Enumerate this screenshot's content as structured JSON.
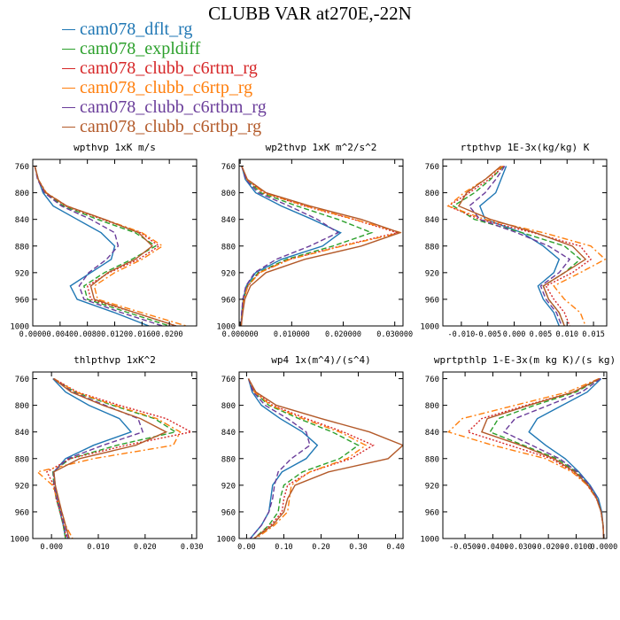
{
  "title": "CLUBB VAR at270E,-22N",
  "colors": {
    "cam078_dflt_rg": "#1f77b4",
    "cam078_expldiff": "#2ca02c",
    "cam078_clubb_c6rtm_rg": "#d62728",
    "cam078_clubb_c6rtp_rg": "#ff7f0e",
    "cam078_clubb_c6rtbm_rg": "#6a3d9a",
    "cam078_clubb_c6rtbp_rg": "#b35a2a"
  },
  "legend": [
    {
      "label": "cam078_dflt_rg",
      "color": "#1f77b4"
    },
    {
      "label": "cam078_expldiff",
      "color": "#2ca02c"
    },
    {
      "label": "cam078_clubb_c6rtm_rg",
      "color": "#d62728"
    },
    {
      "label": "cam078_clubb_c6rtp_rg",
      "color": "#ff7f0e"
    },
    {
      "label": "cam078_clubb_c6rtbm_rg",
      "color": "#6a3d9a"
    },
    {
      "label": "cam078_clubb_c6rtbp_rg",
      "color": "#b35a2a"
    }
  ],
  "chart_data": [
    {
      "type": "line",
      "title": "wpthvp  1xK m/s",
      "xlim": [
        0,
        0.024
      ],
      "ylim": [
        1000,
        750
      ],
      "y_axis_reversed": true,
      "xticks": [
        "0.0000",
        "0.0040",
        "0.0080",
        "0.0120",
        "0.0160",
        "0.0200"
      ],
      "xtick_values": [
        0,
        0.004,
        0.008,
        0.012,
        0.016,
        0.02
      ],
      "yticks": [
        "760",
        "800",
        "840",
        "880",
        "920",
        "960",
        "1000"
      ],
      "ytick_values": [
        760,
        800,
        840,
        880,
        920,
        960,
        1000
      ],
      "y": [
        760,
        780,
        800,
        820,
        840,
        860,
        880,
        900,
        920,
        940,
        960,
        980,
        1000
      ],
      "series": [
        {
          "name": "cam078_dflt_rg",
          "style": "solid",
          "x": [
            0.0003,
            0.0008,
            0.0015,
            0.003,
            0.0065,
            0.01,
            0.012,
            0.0115,
            0.0085,
            0.0055,
            0.0065,
            0.012,
            0.017
          ]
        },
        {
          "name": "cam078_expldiff",
          "style": "dashed",
          "x": [
            0.0003,
            0.0008,
            0.0018,
            0.0045,
            0.0095,
            0.015,
            0.018,
            0.0145,
            0.0105,
            0.0075,
            0.008,
            0.014,
            0.02
          ]
        },
        {
          "name": "cam078_clubb_c6rtm_rg",
          "style": "dotted",
          "x": [
            0.0003,
            0.0008,
            0.0019,
            0.0048,
            0.0102,
            0.0158,
            0.0185,
            0.0155,
            0.0112,
            0.008,
            0.0085,
            0.015,
            0.021
          ]
        },
        {
          "name": "cam078_clubb_c6rtp_rg",
          "style": "dashdot",
          "x": [
            0.0003,
            0.0008,
            0.002,
            0.005,
            0.0105,
            0.016,
            0.019,
            0.016,
            0.012,
            0.009,
            0.0095,
            0.016,
            0.0225
          ]
        },
        {
          "name": "cam078_clubb_c6rtbm_rg",
          "style": "dashed",
          "x": [
            0.0003,
            0.0007,
            0.0017,
            0.0042,
            0.0085,
            0.012,
            0.0125,
            0.0108,
            0.0082,
            0.0068,
            0.0075,
            0.013,
            0.019
          ]
        },
        {
          "name": "cam078_clubb_c6rtbp_rg",
          "style": "solid",
          "x": [
            0.0003,
            0.0008,
            0.0019,
            0.005,
            0.0105,
            0.0155,
            0.0175,
            0.015,
            0.011,
            0.0085,
            0.009,
            0.015,
            0.021
          ]
        }
      ]
    },
    {
      "type": "line",
      "title": "wp2thvp  1xK m^2/s^2",
      "xlim": [
        -0.0002,
        0.0316
      ],
      "ylim": [
        1000,
        750
      ],
      "y_axis_reversed": true,
      "xticks": [
        "0.000000",
        "0.010000",
        "0.020000",
        "0.030000"
      ],
      "xtick_values": [
        0,
        0.01,
        0.02,
        0.03
      ],
      "yticks": [
        "760",
        "800",
        "840",
        "880",
        "920",
        "960",
        "1000"
      ],
      "ytick_values": [
        760,
        800,
        840,
        880,
        920,
        960,
        1000
      ],
      "y": [
        760,
        780,
        800,
        820,
        840,
        860,
        880,
        900,
        920,
        940,
        960,
        980,
        1000
      ],
      "series": [
        {
          "name": "cam078_dflt_rg",
          "style": "solid",
          "x": [
            0.0003,
            0.001,
            0.003,
            0.008,
            0.014,
            0.0195,
            0.016,
            0.008,
            0.003,
            0.0012,
            0.0006,
            0.0003,
            0.0002
          ]
        },
        {
          "name": "cam078_expldiff",
          "style": "dashed",
          "x": [
            0.0003,
            0.0012,
            0.004,
            0.011,
            0.019,
            0.0255,
            0.018,
            0.009,
            0.0035,
            0.0014,
            0.0007,
            0.0004,
            0.0002
          ]
        },
        {
          "name": "cam078_clubb_c6rtm_rg",
          "style": "dotted",
          "x": [
            0.0003,
            0.0013,
            0.0045,
            0.0125,
            0.022,
            0.0305,
            0.0195,
            0.0095,
            0.0037,
            0.0015,
            0.0007,
            0.0004,
            0.0002
          ]
        },
        {
          "name": "cam078_clubb_c6rtp_rg",
          "style": "dashdot",
          "x": [
            0.0003,
            0.0013,
            0.0046,
            0.0128,
            0.0222,
            0.0312,
            0.0198,
            0.0097,
            0.0038,
            0.0015,
            0.0007,
            0.0004,
            0.0002
          ]
        },
        {
          "name": "cam078_clubb_c6rtbm_rg",
          "style": "dashed",
          "x": [
            0.0003,
            0.0011,
            0.0035,
            0.0095,
            0.015,
            0.019,
            0.0135,
            0.007,
            0.0028,
            0.0011,
            0.0005,
            0.0003,
            0.0002
          ]
        },
        {
          "name": "cam078_clubb_c6rtbp_rg",
          "style": "solid",
          "x": [
            0.0003,
            0.0014,
            0.005,
            0.0135,
            0.0235,
            0.031,
            0.0235,
            0.0125,
            0.005,
            0.002,
            0.0009,
            0.0005,
            0.0002
          ]
        }
      ]
    },
    {
      "type": "line",
      "title": "rtpthvp  1E-3x(kg/kg) K",
      "xlim": [
        -0.0135,
        0.0175
      ],
      "ylim": [
        1000,
        750
      ],
      "y_axis_reversed": true,
      "xticks": [
        "-0.010",
        "-0.005",
        "0.000",
        "0.005",
        "0.010",
        "0.015"
      ],
      "xtick_values": [
        -0.01,
        -0.005,
        0,
        0.005,
        0.01,
        0.015
      ],
      "yticks": [
        "760",
        "800",
        "840",
        "880",
        "920",
        "960",
        "1000"
      ],
      "ytick_values": [
        760,
        800,
        840,
        880,
        920,
        960,
        1000
      ],
      "y": [
        760,
        780,
        800,
        820,
        840,
        860,
        880,
        900,
        920,
        940,
        960,
        980,
        1000
      ],
      "series": [
        {
          "name": "cam078_dflt_rg",
          "style": "solid",
          "x": [
            -0.0015,
            -0.0025,
            -0.0035,
            -0.0065,
            -0.0055,
            0.0015,
            0.0055,
            0.0085,
            0.0075,
            0.0045,
            0.0055,
            0.0075,
            0.0085
          ]
        },
        {
          "name": "cam078_expldiff",
          "style": "dashed",
          "x": [
            -0.002,
            -0.0045,
            -0.0075,
            -0.0115,
            -0.0075,
            0.0015,
            0.0095,
            0.0125,
            0.0095,
            0.0055,
            0.0065,
            0.0085,
            0.0095
          ]
        },
        {
          "name": "cam078_clubb_c6rtm_rg",
          "style": "dotted",
          "x": [
            -0.002,
            -0.0048,
            -0.0085,
            -0.0125,
            -0.0065,
            0.0035,
            0.0125,
            0.0145,
            0.011,
            0.006,
            0.0075,
            0.0095,
            0.0105
          ]
        },
        {
          "name": "cam078_clubb_c6rtp_rg",
          "style": "dashdot",
          "x": [
            -0.0022,
            -0.0055,
            -0.0095,
            -0.0125,
            -0.0055,
            0.0055,
            0.0145,
            0.0172,
            0.0125,
            0.0075,
            0.0095,
            0.0125,
            0.0135
          ]
        },
        {
          "name": "cam078_clubb_c6rtbm_rg",
          "style": "dashed",
          "x": [
            -0.0018,
            -0.0035,
            -0.0055,
            -0.0085,
            -0.0065,
            0.0005,
            0.0065,
            0.0105,
            0.0085,
            0.005,
            0.006,
            0.008,
            0.009
          ]
        },
        {
          "name": "cam078_clubb_c6rtbp_rg",
          "style": "solid",
          "x": [
            -0.0025,
            -0.0055,
            -0.009,
            -0.0105,
            -0.0045,
            0.004,
            0.011,
            0.0135,
            0.0095,
            0.0055,
            0.0065,
            0.0085,
            0.0095
          ]
        }
      ]
    },
    {
      "type": "line",
      "title": "thlpthvp  1xK^2",
      "xlim": [
        -0.004,
        0.031
      ],
      "ylim": [
        1000,
        750
      ],
      "y_axis_reversed": true,
      "xticks": [
        "0.000",
        "0.010",
        "0.020",
        "0.030"
      ],
      "xtick_values": [
        0,
        0.01,
        0.02,
        0.03
      ],
      "yticks": [
        "760",
        "800",
        "840",
        "880",
        "920",
        "960",
        "1000"
      ],
      "ytick_values": [
        760,
        800,
        840,
        880,
        920,
        960,
        1000
      ],
      "y": [
        760,
        780,
        800,
        820,
        840,
        860,
        880,
        900,
        920,
        940,
        960,
        980,
        1000
      ],
      "series": [
        {
          "name": "cam078_dflt_rg",
          "style": "solid",
          "x": [
            0.0003,
            0.003,
            0.008,
            0.0145,
            0.017,
            0.009,
            0.003,
            0.0005,
            0.0008,
            0.0012,
            0.0018,
            0.0025,
            0.003
          ]
        },
        {
          "name": "cam078_expldiff",
          "style": "dashed",
          "x": [
            0.0005,
            0.005,
            0.013,
            0.022,
            0.0265,
            0.014,
            0.004,
            0.0003,
            0.0005,
            0.001,
            0.0018,
            0.0025,
            0.003
          ]
        },
        {
          "name": "cam078_clubb_c6rtm_rg",
          "style": "dotted",
          "x": [
            0.0005,
            0.0055,
            0.0145,
            0.0245,
            0.0298,
            0.016,
            0.004,
            -0.001,
            0.0005,
            0.001,
            0.0018,
            0.0026,
            0.0032
          ]
        },
        {
          "name": "cam078_clubb_c6rtp_rg",
          "style": "dashdot",
          "x": [
            0.0005,
            0.0052,
            0.0135,
            0.0225,
            0.0275,
            0.026,
            0.009,
            -0.003,
            0.0002,
            0.0012,
            0.0022,
            0.003,
            0.0045
          ]
        },
        {
          "name": "cam078_clubb_c6rtbm_rg",
          "style": "dashed",
          "x": [
            0.0004,
            0.0045,
            0.0115,
            0.0185,
            0.0195,
            0.011,
            0.0035,
            0.0004,
            0.0006,
            0.0012,
            0.002,
            0.0027,
            0.0035
          ]
        },
        {
          "name": "cam078_clubb_c6rtbp_rg",
          "style": "solid",
          "x": [
            0.0004,
            0.0042,
            0.011,
            0.019,
            0.0245,
            0.018,
            0.006,
            0.0005,
            0.0008,
            0.0015,
            0.0022,
            0.003,
            0.0038
          ]
        }
      ]
    },
    {
      "type": "line",
      "title": "wp4  1x(m^4)/(s^4)",
      "xlim": [
        -0.02,
        0.42
      ],
      "ylim": [
        1000,
        750
      ],
      "y_axis_reversed": true,
      "xticks": [
        "0.00",
        "0.10",
        "0.20",
        "0.30",
        "0.40"
      ],
      "xtick_values": [
        0,
        0.1,
        0.2,
        0.3,
        0.4
      ],
      "yticks": [
        "760",
        "800",
        "840",
        "880",
        "920",
        "960",
        "1000"
      ],
      "ytick_values": [
        760,
        800,
        840,
        880,
        920,
        960,
        1000
      ],
      "y": [
        760,
        780,
        800,
        820,
        840,
        860,
        880,
        900,
        920,
        940,
        960,
        980,
        1000
      ],
      "series": [
        {
          "name": "cam078_dflt_rg",
          "style": "solid",
          "x": [
            0.005,
            0.015,
            0.04,
            0.09,
            0.15,
            0.19,
            0.16,
            0.095,
            0.07,
            0.065,
            0.06,
            0.04,
            0.01
          ]
        },
        {
          "name": "cam078_expldiff",
          "style": "dashed",
          "x": [
            0.005,
            0.02,
            0.06,
            0.14,
            0.23,
            0.3,
            0.25,
            0.15,
            0.1,
            0.09,
            0.085,
            0.06,
            0.02
          ]
        },
        {
          "name": "cam078_clubb_c6rtm_rg",
          "style": "dotted",
          "x": [
            0.005,
            0.022,
            0.07,
            0.16,
            0.26,
            0.34,
            0.28,
            0.17,
            0.11,
            0.1,
            0.095,
            0.065,
            0.02
          ]
        },
        {
          "name": "cam078_clubb_c6rtp_rg",
          "style": "dashdot",
          "x": [
            0.005,
            0.021,
            0.065,
            0.15,
            0.25,
            0.32,
            0.27,
            0.17,
            0.12,
            0.115,
            0.11,
            0.075,
            0.025
          ]
        },
        {
          "name": "cam078_clubb_c6rtbm_rg",
          "style": "dashed",
          "x": [
            0.005,
            0.018,
            0.05,
            0.11,
            0.16,
            0.17,
            0.12,
            0.085,
            0.075,
            0.07,
            0.06,
            0.04,
            0.01
          ]
        },
        {
          "name": "cam078_clubb_c6rtbp_rg",
          "style": "solid",
          "x": [
            0.005,
            0.025,
            0.08,
            0.2,
            0.33,
            0.42,
            0.38,
            0.22,
            0.13,
            0.11,
            0.1,
            0.07,
            0.02
          ]
        }
      ]
    },
    {
      "type": "line",
      "title": "wprtpthlp  1-E-3x(m kg K)/(s kg)",
      "xlim": [
        -0.058,
        0.001
      ],
      "ylim": [
        1000,
        750
      ],
      "y_axis_reversed": true,
      "xticks": [
        "-0.0500",
        "-0.0400",
        "-0.0300",
        "-0.0200",
        "-0.0100",
        "0.0000"
      ],
      "xtick_values": [
        -0.05,
        -0.04,
        -0.03,
        -0.02,
        -0.01,
        0
      ],
      "yticks": [
        "760",
        "800",
        "840",
        "880",
        "920",
        "960",
        "1000"
      ],
      "ytick_values": [
        760,
        800,
        840,
        880,
        920,
        960,
        1000
      ],
      "y": [
        760,
        780,
        800,
        820,
        840,
        860,
        880,
        900,
        920,
        940,
        960,
        980,
        1000
      ],
      "series": [
        {
          "name": "cam078_dflt_rg",
          "style": "solid",
          "x": [
            -0.001,
            -0.006,
            -0.015,
            -0.024,
            -0.027,
            -0.021,
            -0.014,
            -0.009,
            -0.005,
            -0.002,
            -0.0008,
            -0.0003,
            -0.0001
          ]
        },
        {
          "name": "cam078_expldiff",
          "style": "dashed",
          "x": [
            -0.0015,
            -0.01,
            -0.025,
            -0.038,
            -0.041,
            -0.029,
            -0.017,
            -0.01,
            -0.0055,
            -0.0025,
            -0.001,
            -0.0003,
            -0.0001
          ]
        },
        {
          "name": "cam078_clubb_c6rtm_rg",
          "style": "dotted",
          "x": [
            -0.0015,
            -0.011,
            -0.028,
            -0.044,
            -0.049,
            -0.034,
            -0.019,
            -0.011,
            -0.006,
            -0.0027,
            -0.001,
            -0.0003,
            -0.0001
          ]
        },
        {
          "name": "cam078_clubb_c6rtp_rg",
          "style": "dashdot",
          "x": [
            -0.0018,
            -0.013,
            -0.032,
            -0.051,
            -0.056,
            -0.04,
            -0.021,
            -0.0115,
            -0.006,
            -0.0027,
            -0.001,
            -0.0003,
            -0.0001
          ]
        },
        {
          "name": "cam078_clubb_c6rtbm_rg",
          "style": "dashed",
          "x": [
            -0.0012,
            -0.008,
            -0.02,
            -0.032,
            -0.036,
            -0.026,
            -0.016,
            -0.0095,
            -0.0052,
            -0.0024,
            -0.001,
            -0.0003,
            -0.0001
          ]
        },
        {
          "name": "cam078_clubb_c6rtbp_rg",
          "style": "solid",
          "x": [
            -0.0016,
            -0.011,
            -0.027,
            -0.042,
            -0.044,
            -0.03,
            -0.018,
            -0.0105,
            -0.0057,
            -0.0026,
            -0.001,
            -0.0003,
            -0.0001
          ]
        }
      ]
    }
  ]
}
